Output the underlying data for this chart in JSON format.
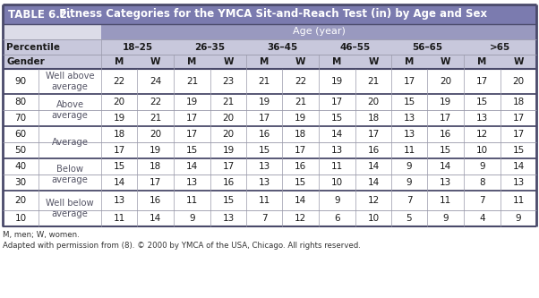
{
  "title_bold": "TABLE 6.2.",
  "title_rest": " Fitness Categories for the YMCA Sit-and-Reach Test (in) by Age and Sex",
  "age_header": "Age (year)",
  "age_groups": [
    "18–25",
    "26–35",
    "36–45",
    "46–55",
    "56–65",
    ">65"
  ],
  "gender_labels": [
    "M",
    "W",
    "M",
    "W",
    "M",
    "W",
    "M",
    "W",
    "M",
    "W",
    "M",
    "W"
  ],
  "percentiles": [
    90,
    80,
    70,
    60,
    50,
    40,
    30,
    20,
    10
  ],
  "category_merges": [
    [
      0,
      0,
      "Well above\naverage"
    ],
    [
      1,
      2,
      "Above\naverage"
    ],
    [
      3,
      4,
      "Average"
    ],
    [
      5,
      6,
      "Below\naverage"
    ],
    [
      7,
      8,
      "Well below\naverage"
    ]
  ],
  "data": {
    "90": [
      22,
      24,
      21,
      23,
      21,
      22,
      19,
      21,
      17,
      20,
      17,
      20
    ],
    "80": [
      20,
      22,
      19,
      21,
      19,
      21,
      17,
      20,
      15,
      19,
      15,
      18
    ],
    "70": [
      19,
      21,
      17,
      20,
      17,
      19,
      15,
      18,
      13,
      17,
      13,
      17
    ],
    "60": [
      18,
      20,
      17,
      20,
      16,
      18,
      14,
      17,
      13,
      16,
      12,
      17
    ],
    "50": [
      17,
      19,
      15,
      19,
      15,
      17,
      13,
      16,
      11,
      15,
      10,
      15
    ],
    "40": [
      15,
      18,
      14,
      17,
      13,
      16,
      11,
      14,
      9,
      14,
      9,
      14
    ],
    "30": [
      14,
      17,
      13,
      16,
      13,
      15,
      10,
      14,
      9,
      13,
      8,
      13
    ],
    "20": [
      13,
      16,
      11,
      15,
      11,
      14,
      9,
      12,
      7,
      11,
      7,
      11
    ],
    "10": [
      11,
      14,
      9,
      13,
      7,
      12,
      6,
      10,
      5,
      9,
      4,
      9
    ]
  },
  "footer1": "M, men; W, women.",
  "footer2": "Adapted with permission from (8). © 2000 by YMCA of the USA, Chicago. All rights reserved.",
  "title_bg": "#7B7BAF",
  "age_hdr_bg": "#9999BF",
  "subhdr_bg": "#C8C8DC",
  "row_white": "#FFFFFF",
  "heavy_color": "#4A4A6A",
  "thin_color": "#9999AA",
  "text_dark": "#1A1A1A",
  "text_white": "#FFFFFF",
  "cat_color": "#555566",
  "title_fontsize": 8.5,
  "header_fontsize": 7.5,
  "cell_fontsize": 7.5,
  "cat_fontsize": 7.2
}
